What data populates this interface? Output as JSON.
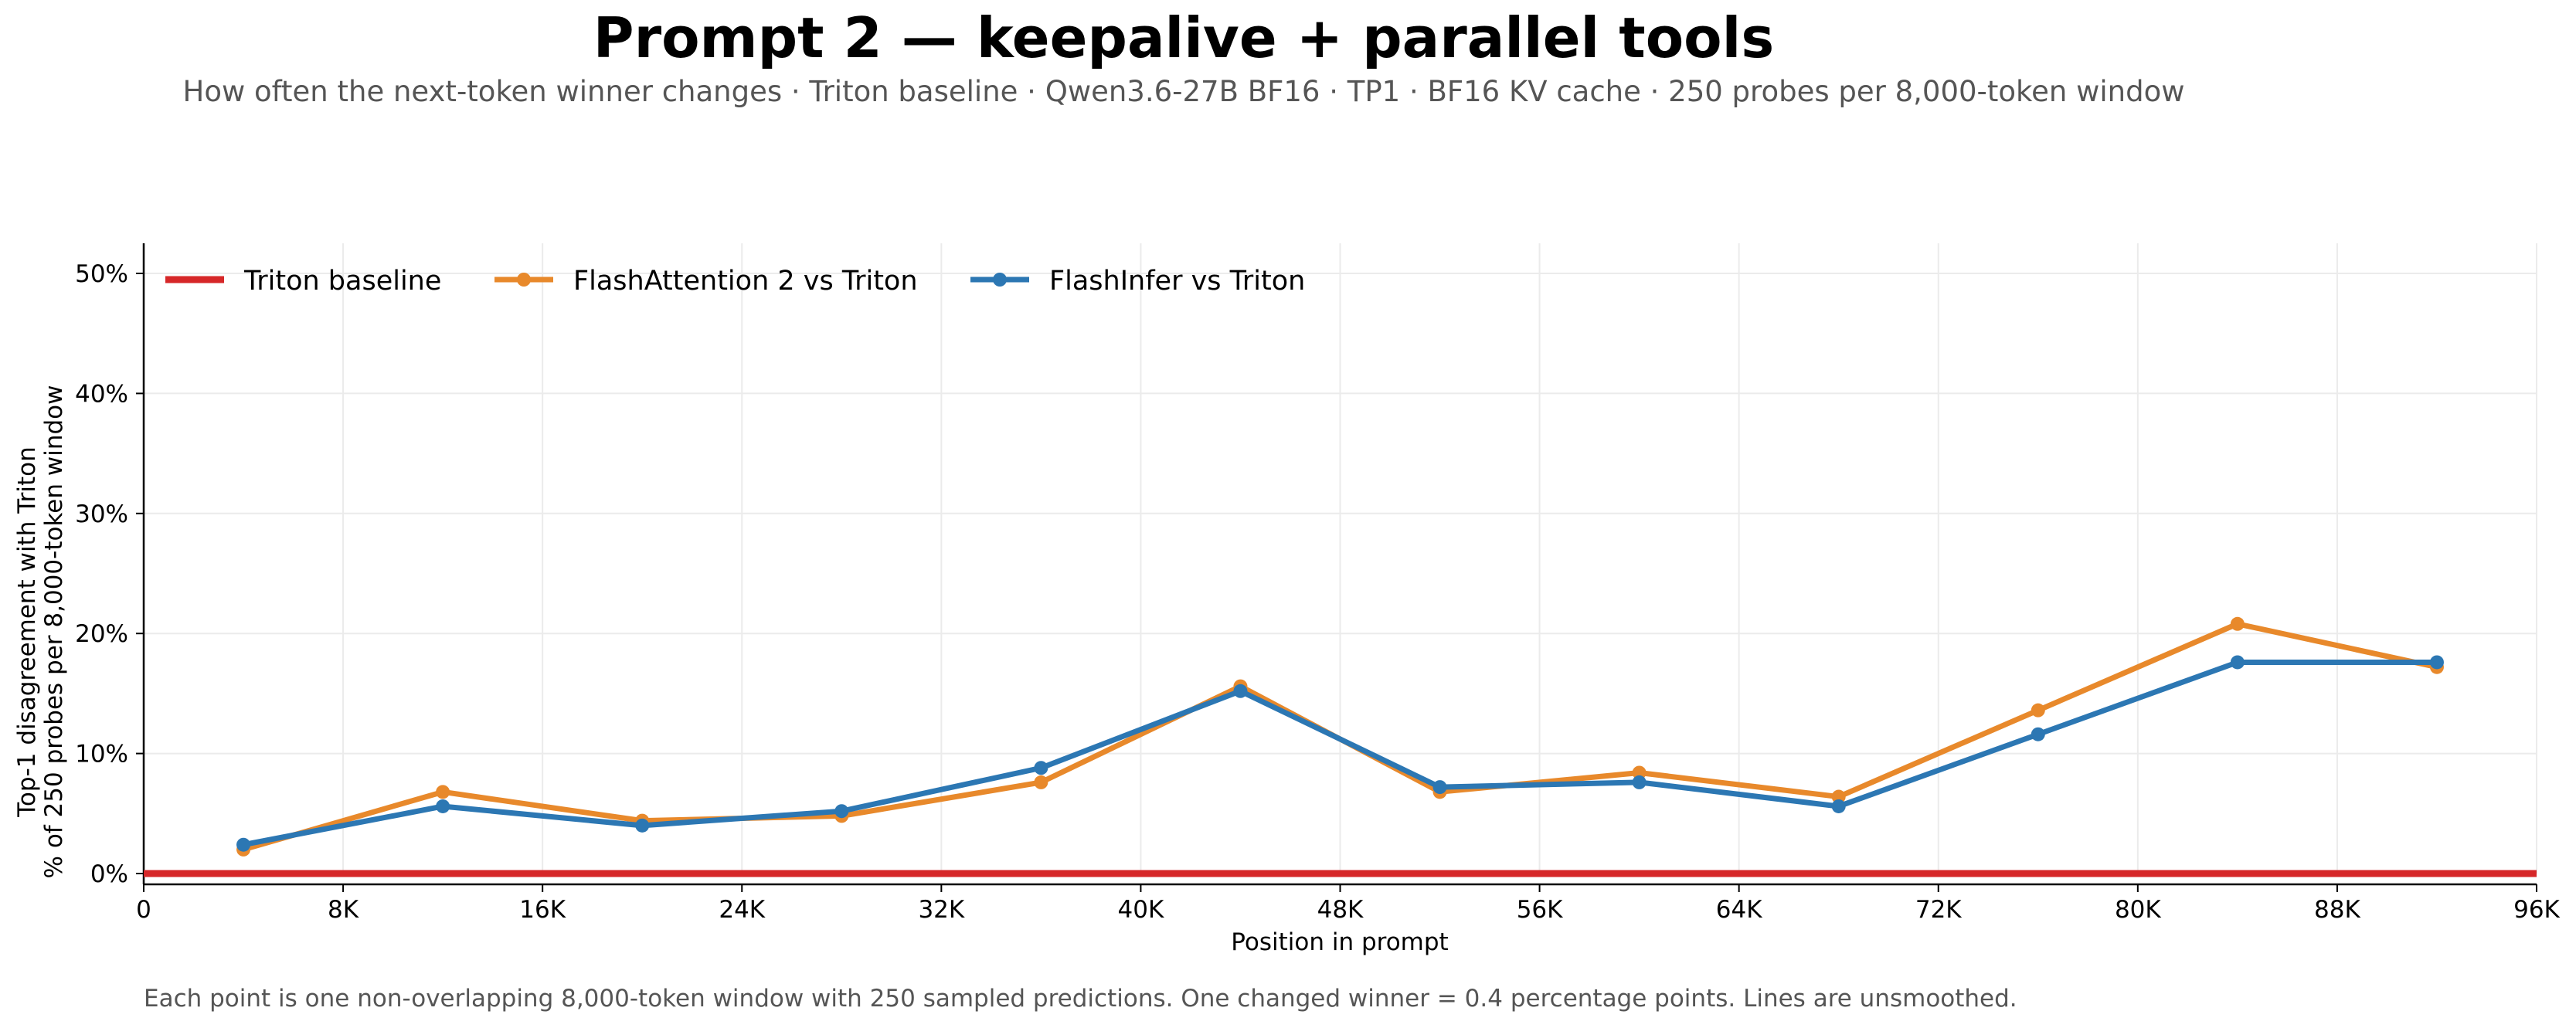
{
  "chart_data": {
    "type": "line",
    "title": "Prompt 2 — keepalive + parallel tools",
    "subtitle": "How often the next-token winner changes · Triton baseline · Qwen3.6-27B BF16 · TP1 · BF16 KV cache · 250 probes per 8,000-token window",
    "xlabel": "Position in prompt",
    "ylabel_lines": [
      "Top-1 disagreement with Triton",
      "% of 250 probes per 8,000-token window"
    ],
    "footnote": "Each point is one non-overlapping 8,000-token window with 250 sampled predictions. One changed winner = 0.4 percentage points. Lines are unsmoothed.",
    "xlim": [
      0,
      96000
    ],
    "ylim": [
      0,
      0.5
    ],
    "x_ticks": [
      {
        "value": 0,
        "label": "0"
      },
      {
        "value": 8000,
        "label": "8K"
      },
      {
        "value": 16000,
        "label": "16K"
      },
      {
        "value": 24000,
        "label": "24K"
      },
      {
        "value": 32000,
        "label": "32K"
      },
      {
        "value": 40000,
        "label": "40K"
      },
      {
        "value": 48000,
        "label": "48K"
      },
      {
        "value": 56000,
        "label": "56K"
      },
      {
        "value": 64000,
        "label": "64K"
      },
      {
        "value": 72000,
        "label": "72K"
      },
      {
        "value": 80000,
        "label": "80K"
      },
      {
        "value": 88000,
        "label": "88K"
      },
      {
        "value": 96000,
        "label": "96K"
      }
    ],
    "y_ticks": [
      {
        "value": 0,
        "label": "0%"
      },
      {
        "value": 0.1,
        "label": "10%"
      },
      {
        "value": 0.2,
        "label": "20%"
      },
      {
        "value": 0.3,
        "label": "30%"
      },
      {
        "value": 0.4,
        "label": "40%"
      },
      {
        "value": 0.5,
        "label": "50%"
      }
    ],
    "grid": true,
    "legend_position": "top-left",
    "baseline": {
      "name": "Triton baseline",
      "value": 0,
      "color": "#d62728"
    },
    "x": [
      4000,
      12000,
      20000,
      28000,
      36000,
      44000,
      52000,
      60000,
      68000,
      76000,
      84000,
      92000
    ],
    "series": [
      {
        "name": "FlashAttention 2 vs Triton",
        "color": "#e8892b",
        "values": [
          0.02,
          0.068,
          0.044,
          0.048,
          0.076,
          0.156,
          0.068,
          0.084,
          0.064,
          0.136,
          0.208,
          0.172
        ]
      },
      {
        "name": "FlashInfer vs Triton",
        "color": "#2c77b3",
        "values": [
          0.024,
          0.056,
          0.04,
          0.052,
          0.088,
          0.152,
          0.072,
          0.076,
          0.056,
          0.116,
          0.176,
          0.176
        ]
      }
    ]
  }
}
